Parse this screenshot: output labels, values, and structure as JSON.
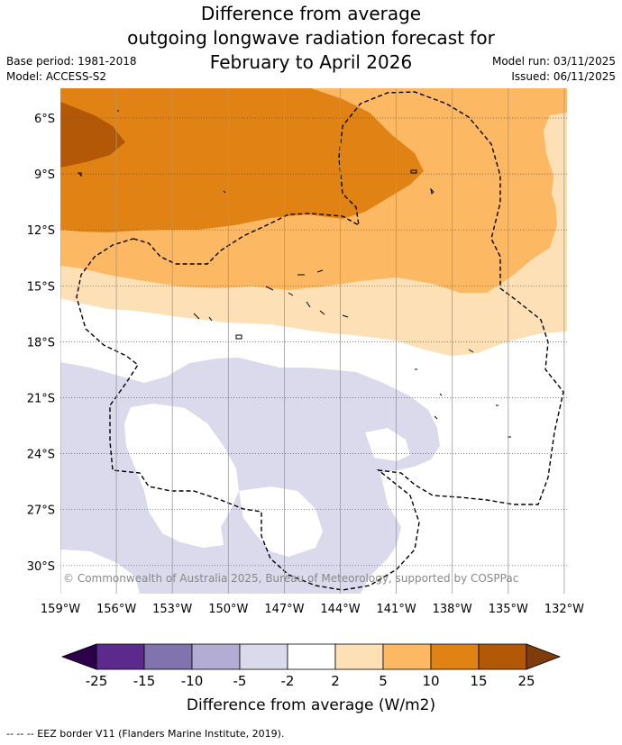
{
  "title": {
    "line1": "Difference from average",
    "line2": "outgoing longwave radiation forecast for",
    "line3": "February to April 2026"
  },
  "meta": {
    "base_period": "Base period: 1981-2018",
    "model": "Model: ACCESS-S2",
    "model_run": "Model run: 03/11/2025",
    "issued": "Issued: 06/11/2025"
  },
  "map": {
    "lon_labels": [
      "159°W",
      "156°W",
      "153°W",
      "150°W",
      "147°W",
      "144°W",
      "141°W",
      "138°W",
      "135°W",
      "132°W"
    ],
    "lat_labels": [
      "6°S",
      "9°S",
      "12°S",
      "15°S",
      "18°S",
      "21°S",
      "24°S",
      "27°S",
      "30°S"
    ],
    "copyright": "© Commonwealth of Australia 2025, Bureau of Meteorology, supported by COSPPac"
  },
  "colorbar": {
    "ticks": [
      "-25",
      "-15",
      "-10",
      "-5",
      "-2",
      "2",
      "5",
      "10",
      "15",
      "25"
    ],
    "colors": [
      "#5b2a8c",
      "#8073ae",
      "#b3acd3",
      "#dadaec",
      "#ffffff",
      "#fee0b6",
      "#fdb863",
      "#e08214",
      "#b35806"
    ],
    "under_color": "#2d004b",
    "over_color": "#7f3b08",
    "label": "Difference from average (W/m2)"
  },
  "footer": {
    "legend": "-- -- -- EEZ border V11 (Flanders Marine Institute, 2019)."
  }
}
